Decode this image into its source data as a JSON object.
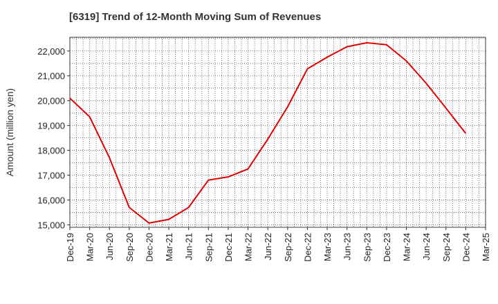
{
  "chart_data": {
    "type": "line",
    "title": "[6319]  Trend of 12-Month Moving Sum of Revenues",
    "xlabel": "",
    "ylabel": "Amount (million yen)",
    "ylim": [
      14900,
      22550
    ],
    "y_ticks": [
      15000,
      16000,
      17000,
      18000,
      19000,
      20000,
      21000,
      22000
    ],
    "y_tick_labels": [
      "15,000",
      "16,000",
      "17,000",
      "18,000",
      "19,000",
      "20,000",
      "21,000",
      "22,000"
    ],
    "x_tick_labels": [
      "Dec-19",
      "Mar-20",
      "Jun-20",
      "Sep-20",
      "Dec-20",
      "Mar-21",
      "Jun-21",
      "Sep-21",
      "Dec-21",
      "Mar-22",
      "Jun-22",
      "Sep-22",
      "Dec-22",
      "Mar-23",
      "Jun-23",
      "Sep-23",
      "Dec-23",
      "Mar-24",
      "Jun-24",
      "Sep-24",
      "Dec-24",
      "Mar-25"
    ],
    "grid": true,
    "series": [
      {
        "color": "#e00000",
        "x": [
          "Dec-19",
          "Mar-20",
          "Jun-20",
          "Sep-20",
          "Dec-20",
          "Mar-21",
          "Jun-21",
          "Sep-21",
          "Dec-21",
          "Mar-22",
          "Jun-22",
          "Sep-22",
          "Dec-22",
          "Mar-23",
          "Jun-23",
          "Sep-23",
          "Dec-23",
          "Mar-24",
          "Jun-24",
          "Sep-24",
          "Dec-24"
        ],
        "values": [
          20100,
          19350,
          17700,
          15700,
          15070,
          15220,
          15700,
          16800,
          16930,
          17250,
          18450,
          19750,
          21280,
          21750,
          22170,
          22330,
          22250,
          21600,
          20700,
          19700,
          18680
        ]
      }
    ]
  }
}
